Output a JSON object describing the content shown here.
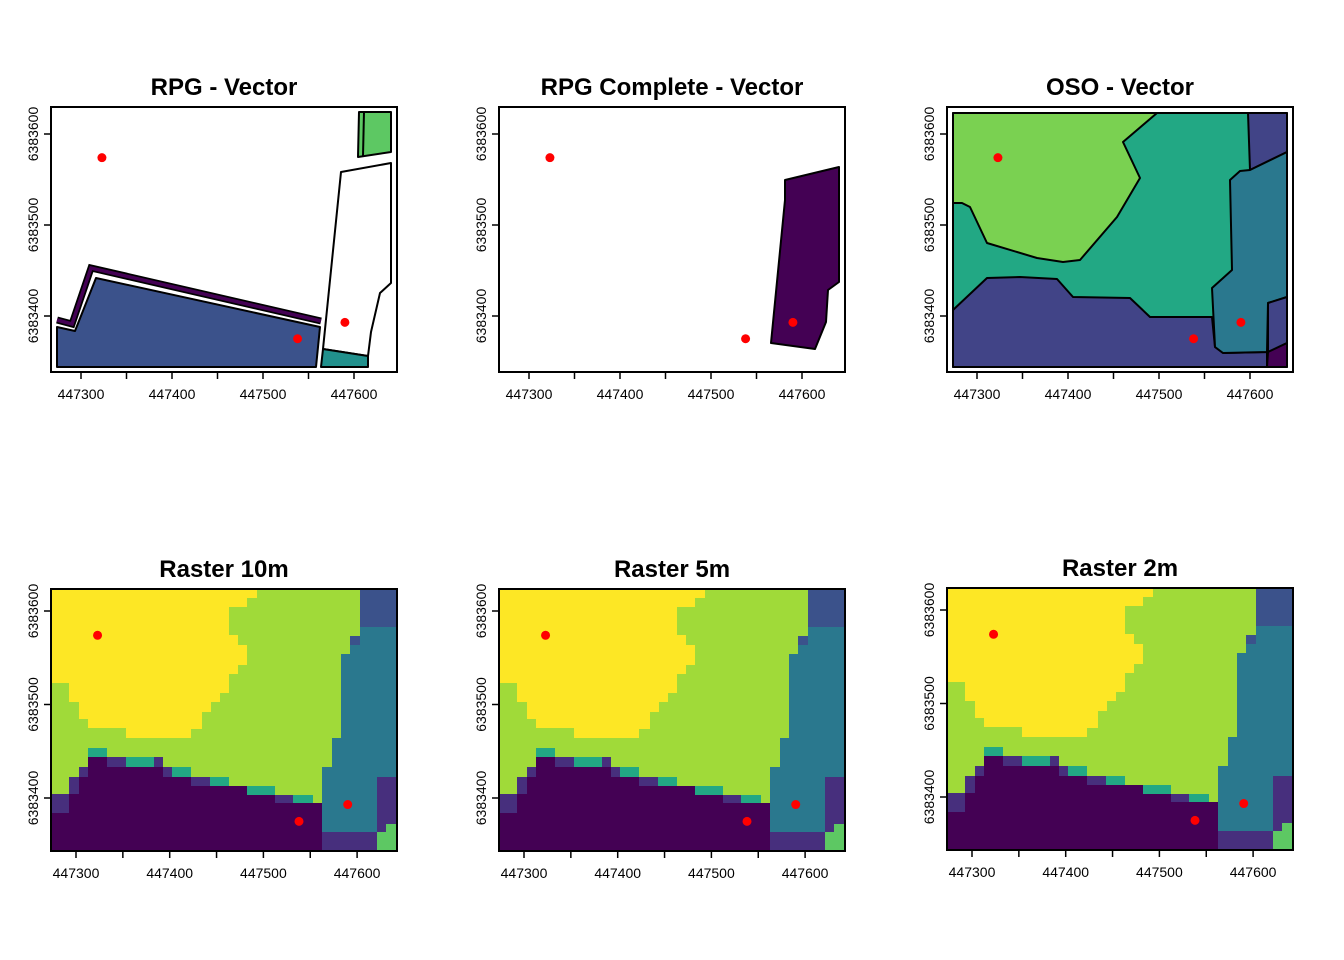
{
  "colors": {
    "purple": "#440154",
    "blue": "#3B528B",
    "indigo": "#414487",
    "violet": "#472F7D",
    "teal": "#21908C",
    "teal_green": "#22A884",
    "petrol": "#2A788E",
    "green": "#5DC863",
    "light_green": "#7AD151",
    "lime": "#A0DA39",
    "yellow": "#FDE725",
    "point": "#FF0000"
  },
  "x_ticks": [
    "447300",
    "447400",
    "447500",
    "447600"
  ],
  "x_tick_values": [
    447300,
    447400,
    447500,
    447600
  ],
  "y_ticks": [
    "6383400",
    "6383500",
    "6383600"
  ],
  "y_tick_values": [
    6383400,
    6383500,
    6383600
  ],
  "points": [
    {
      "x": 447323,
      "y": 6383574
    },
    {
      "x": 447538,
      "y": 6383375
    },
    {
      "x": 447590,
      "y": 6383393
    }
  ],
  "panels": [
    {
      "title": "RPG - Vector"
    },
    {
      "title": "RPG Complete - Vector"
    },
    {
      "title": "OSO - Vector"
    },
    {
      "title": "Raster 10m"
    },
    {
      "title": "Raster 5m"
    },
    {
      "title": "Raster 2m"
    }
  ]
}
